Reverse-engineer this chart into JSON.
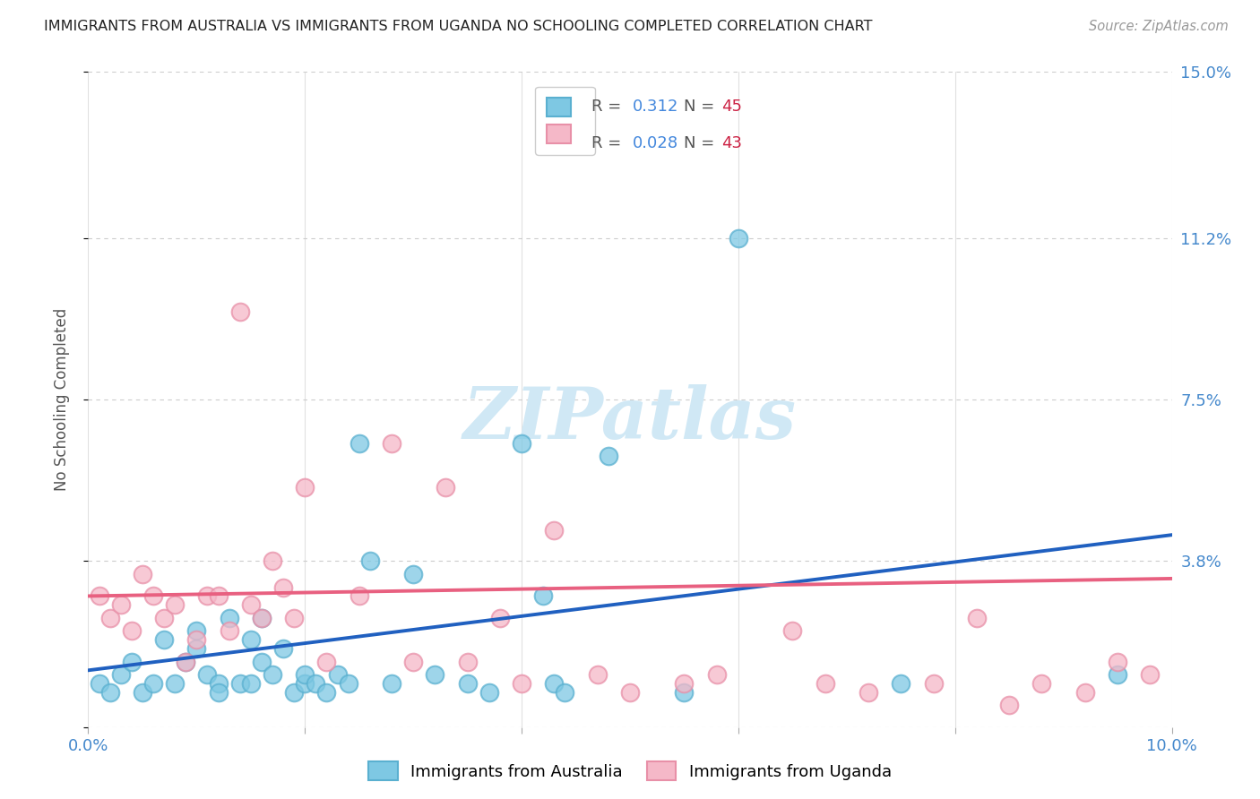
{
  "title": "IMMIGRANTS FROM AUSTRALIA VS IMMIGRANTS FROM UGANDA NO SCHOOLING COMPLETED CORRELATION CHART",
  "source": "Source: ZipAtlas.com",
  "ylabel": "No Schooling Completed",
  "xlim": [
    0.0,
    0.1
  ],
  "ylim": [
    0.0,
    0.15
  ],
  "xtick_positions": [
    0.0,
    0.02,
    0.04,
    0.06,
    0.08,
    0.1
  ],
  "xticklabels": [
    "0.0%",
    "",
    "",
    "",
    "",
    "10.0%"
  ],
  "ytick_positions": [
    0.0,
    0.038,
    0.075,
    0.112,
    0.15
  ],
  "ytick_labels": [
    "",
    "3.8%",
    "7.5%",
    "11.2%",
    "15.0%"
  ],
  "australia_color": "#7ec8e3",
  "australia_edge_color": "#5ab0d0",
  "uganda_color": "#f5b8c8",
  "uganda_edge_color": "#e890a8",
  "australia_line_color": "#2060c0",
  "uganda_line_color": "#e86080",
  "background_color": "#ffffff",
  "grid_color": "#cccccc",
  "legend_R_australia": "0.312",
  "legend_N_australia": "45",
  "legend_R_uganda": "0.028",
  "legend_N_uganda": "43",
  "legend_color_R": "#4488dd",
  "legend_color_N": "#cc2244",
  "watermark_text": "ZIPatlas",
  "watermark_color": "#d0e8f5",
  "aus_line_x": [
    0.0,
    0.1
  ],
  "aus_line_y": [
    0.013,
    0.044
  ],
  "uga_line_x": [
    0.0,
    0.1
  ],
  "uga_line_y": [
    0.03,
    0.034
  ],
  "australia_scatter_x": [
    0.001,
    0.002,
    0.003,
    0.004,
    0.005,
    0.006,
    0.007,
    0.008,
    0.009,
    0.01,
    0.01,
    0.011,
    0.012,
    0.012,
    0.013,
    0.014,
    0.015,
    0.015,
    0.016,
    0.016,
    0.017,
    0.018,
    0.019,
    0.02,
    0.02,
    0.021,
    0.022,
    0.023,
    0.024,
    0.025,
    0.026,
    0.028,
    0.03,
    0.032,
    0.035,
    0.037,
    0.04,
    0.042,
    0.043,
    0.044,
    0.048,
    0.055,
    0.06,
    0.075,
    0.095
  ],
  "australia_scatter_y": [
    0.01,
    0.008,
    0.012,
    0.015,
    0.008,
    0.01,
    0.02,
    0.01,
    0.015,
    0.018,
    0.022,
    0.012,
    0.01,
    0.008,
    0.025,
    0.01,
    0.02,
    0.01,
    0.025,
    0.015,
    0.012,
    0.018,
    0.008,
    0.01,
    0.012,
    0.01,
    0.008,
    0.012,
    0.01,
    0.065,
    0.038,
    0.01,
    0.035,
    0.012,
    0.01,
    0.008,
    0.065,
    0.03,
    0.01,
    0.008,
    0.062,
    0.008,
    0.112,
    0.01,
    0.012
  ],
  "uganda_scatter_x": [
    0.001,
    0.002,
    0.003,
    0.004,
    0.005,
    0.006,
    0.007,
    0.008,
    0.009,
    0.01,
    0.011,
    0.012,
    0.013,
    0.014,
    0.015,
    0.016,
    0.017,
    0.018,
    0.019,
    0.02,
    0.022,
    0.025,
    0.028,
    0.03,
    0.033,
    0.035,
    0.038,
    0.04,
    0.043,
    0.047,
    0.05,
    0.055,
    0.058,
    0.065,
    0.068,
    0.072,
    0.078,
    0.082,
    0.085,
    0.088,
    0.092,
    0.095,
    0.098
  ],
  "uganda_scatter_y": [
    0.03,
    0.025,
    0.028,
    0.022,
    0.035,
    0.03,
    0.025,
    0.028,
    0.015,
    0.02,
    0.03,
    0.03,
    0.022,
    0.095,
    0.028,
    0.025,
    0.038,
    0.032,
    0.025,
    0.055,
    0.015,
    0.03,
    0.065,
    0.015,
    0.055,
    0.015,
    0.025,
    0.01,
    0.045,
    0.012,
    0.008,
    0.01,
    0.012,
    0.022,
    0.01,
    0.008,
    0.01,
    0.025,
    0.005,
    0.01,
    0.008,
    0.015,
    0.012
  ]
}
